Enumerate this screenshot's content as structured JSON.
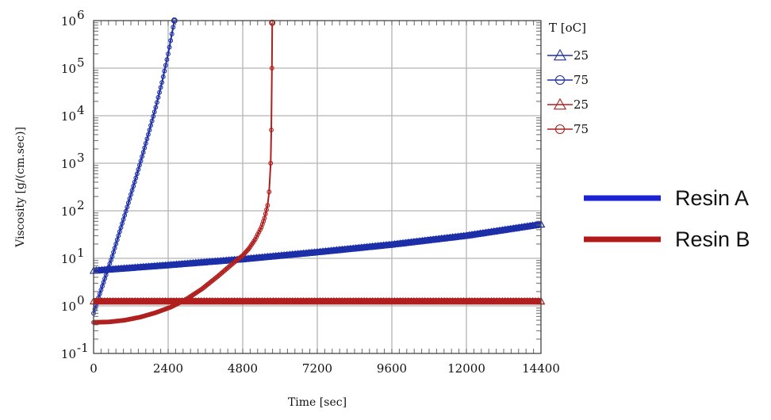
{
  "chart_data": {
    "type": "line",
    "title": "",
    "xlabel": "Time [sec]",
    "ylabel": "Viscosity [g/(cm.sec)]",
    "xlim": [
      0,
      14400
    ],
    "ylim_log10": [
      -1,
      6
    ],
    "y_scale": "log",
    "grid": true,
    "x_ticks": [
      0,
      2400,
      4800,
      7200,
      9600,
      12000,
      14400
    ],
    "x_tick_labels": [
      "0",
      "2400",
      "4800",
      "7200",
      "9600",
      "12000",
      "14400"
    ],
    "y_ticks": [
      {
        "base": "10",
        "exp": "-1"
      },
      {
        "base": "10",
        "exp": "0"
      },
      {
        "base": "10",
        "exp": "1"
      },
      {
        "base": "10",
        "exp": "2"
      },
      {
        "base": "10",
        "exp": "3"
      },
      {
        "base": "10",
        "exp": "4"
      },
      {
        "base": "10",
        "exp": "5"
      },
      {
        "base": "10",
        "exp": "6"
      }
    ],
    "legend_title": "T [oC]",
    "legend_position": "right",
    "series": [
      {
        "name": "25",
        "resin": "Resin A",
        "color": "#1c2fa8",
        "marker": "triangle",
        "x": [
          0,
          2400,
          4800,
          7200,
          9600,
          12000,
          14400
        ],
        "y": [
          5.5,
          7.2,
          9.6,
          13.5,
          19.5,
          30,
          52
        ]
      },
      {
        "name": "75",
        "resin": "Resin A",
        "color": "#1c2fa8",
        "marker": "circle",
        "x": [
          0,
          200,
          400,
          600,
          800,
          1000,
          1200,
          1400,
          1600,
          1800,
          2000,
          2200,
          2400,
          2600
        ],
        "y": [
          0.7,
          1.8,
          4.5,
          11,
          30,
          80,
          220,
          600,
          1700,
          5000,
          15000,
          50000,
          200000,
          1000000
        ]
      },
      {
        "name": "25",
        "resin": "Resin B",
        "color": "#b01e1e",
        "marker": "triangle",
        "x": [
          0,
          2400,
          4800,
          7200,
          9600,
          12000,
          14400
        ],
        "y": [
          1.25,
          1.25,
          1.25,
          1.25,
          1.25,
          1.25,
          1.25
        ]
      },
      {
        "name": "75",
        "resin": "Resin B",
        "color": "#b01e1e",
        "marker": "circle",
        "x": [
          0,
          500,
          1000,
          1500,
          2000,
          2500,
          3000,
          3500,
          4000,
          4500,
          4800,
          5000,
          5200,
          5400,
          5500,
          5600,
          5650,
          5700,
          5720,
          5740,
          5750
        ],
        "y": [
          0.45,
          0.46,
          0.5,
          0.58,
          0.72,
          0.95,
          1.4,
          2.3,
          4.2,
          8,
          11.5,
          16,
          25,
          45,
          70,
          130,
          250,
          1000,
          5000,
          100000,
          900000
        ]
      }
    ]
  },
  "resin_legend": [
    {
      "label": "Resin A",
      "color": "#1a22d4"
    },
    {
      "label": "Resin B",
      "color": "#b21a1a"
    }
  ]
}
